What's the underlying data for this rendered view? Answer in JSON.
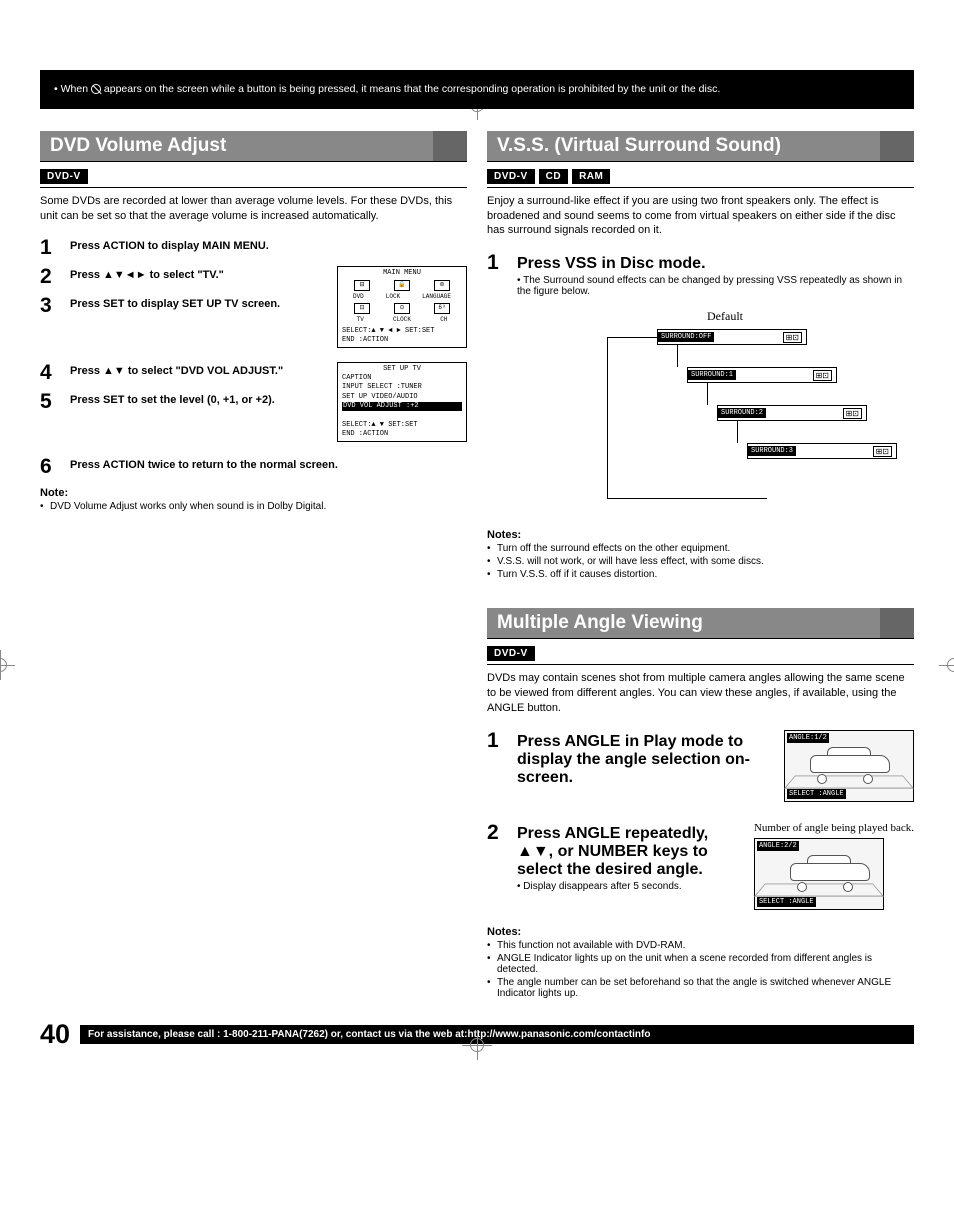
{
  "reg_colors": [
    "#00aeef",
    "#ec008c",
    "#fff200",
    "#000000",
    "#ffffff",
    "#ed1c24",
    "#00a651",
    "#2e3192",
    "#000000",
    "#ffffff",
    "#ec008c",
    "#00aeef"
  ],
  "topnote": {
    "bullet": "•",
    "text_before": "When ",
    "text_after": " appears on the screen while a button is being pressed, it means that the corresponding operation is prohibited by the unit or the disc."
  },
  "dvd_vol": {
    "title": "DVD Volume Adjust",
    "badge": "DVD-V",
    "intro": "Some DVDs are recorded at lower than average volume levels. For these DVDs, this unit can be set so that the average volume is increased automatically.",
    "steps": [
      {
        "n": "1",
        "t": "Press ACTION to display MAIN MENU."
      },
      {
        "n": "2",
        "t": "Press ▲▼◄► to select \"TV.\""
      },
      {
        "n": "3",
        "t": "Press SET to display SET UP TV screen."
      },
      {
        "n": "4",
        "t": "Press ▲▼ to select \"DVD VOL ADJUST.\""
      },
      {
        "n": "5",
        "t": "Press SET to set the level (0, +1, or +2)."
      },
      {
        "n": "6",
        "t": "Press ACTION twice to return to the normal screen."
      }
    ],
    "main_menu": {
      "title": "MAIN MENU",
      "row1": [
        "DVD",
        "LOCK",
        "LANGUAGE"
      ],
      "row2": [
        "TV",
        "CLOCK",
        "CH"
      ],
      "footer1": "SELECT:▲ ▼ ◄ ►   SET:SET",
      "footer2": "END   :ACTION"
    },
    "setup_menu": {
      "title": "SET UP TV",
      "lines": [
        "CAPTION",
        "INPUT SELECT   :TUNER",
        "SET UP VIDEO/AUDIO"
      ],
      "highlight": "DVD VOL ADJUST :+2",
      "footer1": "SELECT:▲ ▼        SET:SET",
      "footer2": "END   :ACTION"
    },
    "note_h": "Note:",
    "note": "DVD Volume Adjust works only when sound is in Dolby Digital."
  },
  "vss": {
    "title": "V.S.S. (Virtual Surround Sound)",
    "badges": [
      "DVD-V",
      "CD",
      "RAM"
    ],
    "intro": "Enjoy a surround-like effect if you are using two front speakers only. The effect is broadened and sound seems to come from virtual speakers on either side if the disc has surround signals recorded on it.",
    "step_n": "1",
    "step_t": "Press VSS in Disc mode.",
    "step_sub": "The Surround sound effects can be changed by pressing VSS repeatedly as shown in the figure below.",
    "default": "Default",
    "modes": [
      "SURROUND:OFF",
      "SURROUND:1",
      "SURROUND:2",
      "SURROUND:3"
    ],
    "spk_icon": "⊞⊡",
    "notes_h": "Notes:",
    "notes": [
      "Turn off the surround effects on the other equipment.",
      "V.S.S. will not work, or will have less effect, with some discs.",
      "Turn V.S.S. off if it causes distortion."
    ]
  },
  "angle": {
    "title": "Multiple Angle Viewing",
    "badge": "DVD-V",
    "intro": "DVDs may contain scenes shot from multiple camera angles allowing the same scene to be viewed from different angles. You can view these angles, if available, using the ANGLE button.",
    "steps": [
      {
        "n": "1",
        "t": "Press ANGLE in Play mode to display the angle selection on-screen."
      },
      {
        "n": "2",
        "t": "Press ANGLE repeatedly, ▲▼, or NUMBER keys to select the desired angle.",
        "sub": "Display disappears after 5 seconds."
      }
    ],
    "caption2": "Number of angle being played back.",
    "box1_top": "ANGLE:1/2",
    "box1_bot": "SELECT  :ANGLE",
    "box2_top": "ANGLE:2/2",
    "box2_bot": "SELECT  :ANGLE",
    "notes_h": "Notes:",
    "notes": [
      "This function not available with DVD-RAM.",
      "ANGLE Indicator lights up on the unit when a scene recorded from different angles is detected.",
      "The angle number can be set beforehand so that the angle is switched whenever ANGLE Indicator lights up."
    ]
  },
  "footer": {
    "page": "40",
    "text": "For assistance, please call : 1-800-211-PANA(7262) or, contact us via the web at:http://www.panasonic.com/contactinfo"
  }
}
